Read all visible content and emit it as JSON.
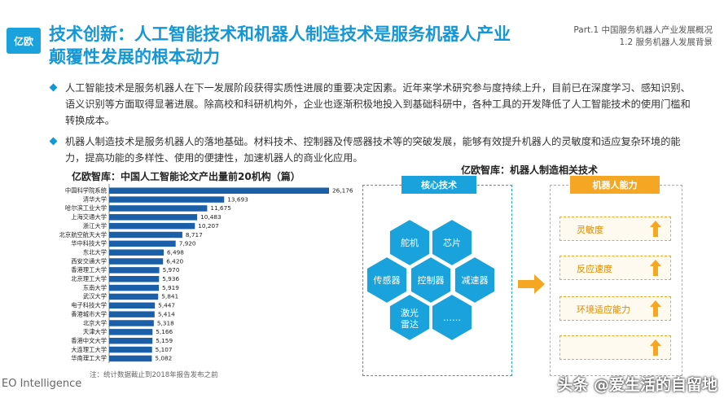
{
  "brand": {
    "logo_text": "亿欧",
    "footer": "EO Intelligence"
  },
  "header": {
    "title_line1": "技术创新：人工智能技术和机器人制造技术是服务机器人产业",
    "title_line2": "颠覆性发展的根本动力",
    "part_line1": "Part.1 中国服务机器人产业发展概况",
    "part_line2": "1.2 服务机器人发展背景"
  },
  "bullets": [
    "人工智能技术是服务机器人在下一发展阶段获得实质性进展的重要决定因素。近年来学术研究参与度持续上升，目前已在深度学习、感知识别、语义识别等方面取得显著进展。除高校和科研机构外，企业也逐渐积极地投入到基础科研中，各种工具的开发降低了人工智能技术的使用门槛和转换成本。",
    "机器人制造技术是服务机器人的落地基础。材料技术、控制器及传感器技术等的突破发展，能够有效提升机器人的灵敏度和适应复杂环境的能力，提高功能的多样性、使用的便捷性，加速机器人的商业化应用。"
  ],
  "chart_data": {
    "type": "bar",
    "orientation": "horizontal",
    "title": "亿欧智库：中国人工智能论文产出量前20机构（篇）",
    "categories": [
      "中国科学院系统",
      "清华大学",
      "哈尔滨工业大学",
      "上海交通大学",
      "浙江大学",
      "北京航空航天大学",
      "华中科技大学",
      "东北大学",
      "西安交通大学",
      "香港理工大学",
      "北京理工大学",
      "东南大学",
      "武汉大学",
      "电子科技大学",
      "香港城市大学",
      "北京大学",
      "天津大学",
      "香港中文大学",
      "大连理工大学",
      "华南理工大学"
    ],
    "values": [
      26176,
      13693,
      11675,
      10483,
      10207,
      8717,
      7920,
      6498,
      6420,
      5970,
      5936,
      5919,
      5841,
      5447,
      5414,
      5318,
      5166,
      5159,
      5107,
      5082
    ],
    "value_labels": [
      "26,176",
      "13,693",
      "11,675",
      "10,483",
      "10,207",
      "8,717",
      "7,920",
      "6,498",
      "6,420",
      "5,970",
      "5,936",
      "5,919",
      "5,841",
      "5,447",
      "5,414",
      "5,318",
      "5,166",
      "5,159",
      "5,107",
      "5,082"
    ],
    "note": "注：统计数据截止到2018年报告发布之前",
    "color": "#1a5fa8"
  },
  "diagram": {
    "title": "亿欧智库：机器人制造相关技术",
    "core_label": "核心技术",
    "capability_label": "机器人能力",
    "hexes": [
      "舵机",
      "芯片",
      "传感器",
      "控制器",
      "减速器",
      "激光雷达",
      "……"
    ],
    "capabilities": [
      "灵敏度",
      "反应速度",
      "环境适应能力",
      ""
    ],
    "colors": {
      "core": "#1aa2dc",
      "capability": "#f5a623",
      "hex": "#1aa2dc"
    }
  },
  "watermark": "头条 @爱生活的自留地"
}
